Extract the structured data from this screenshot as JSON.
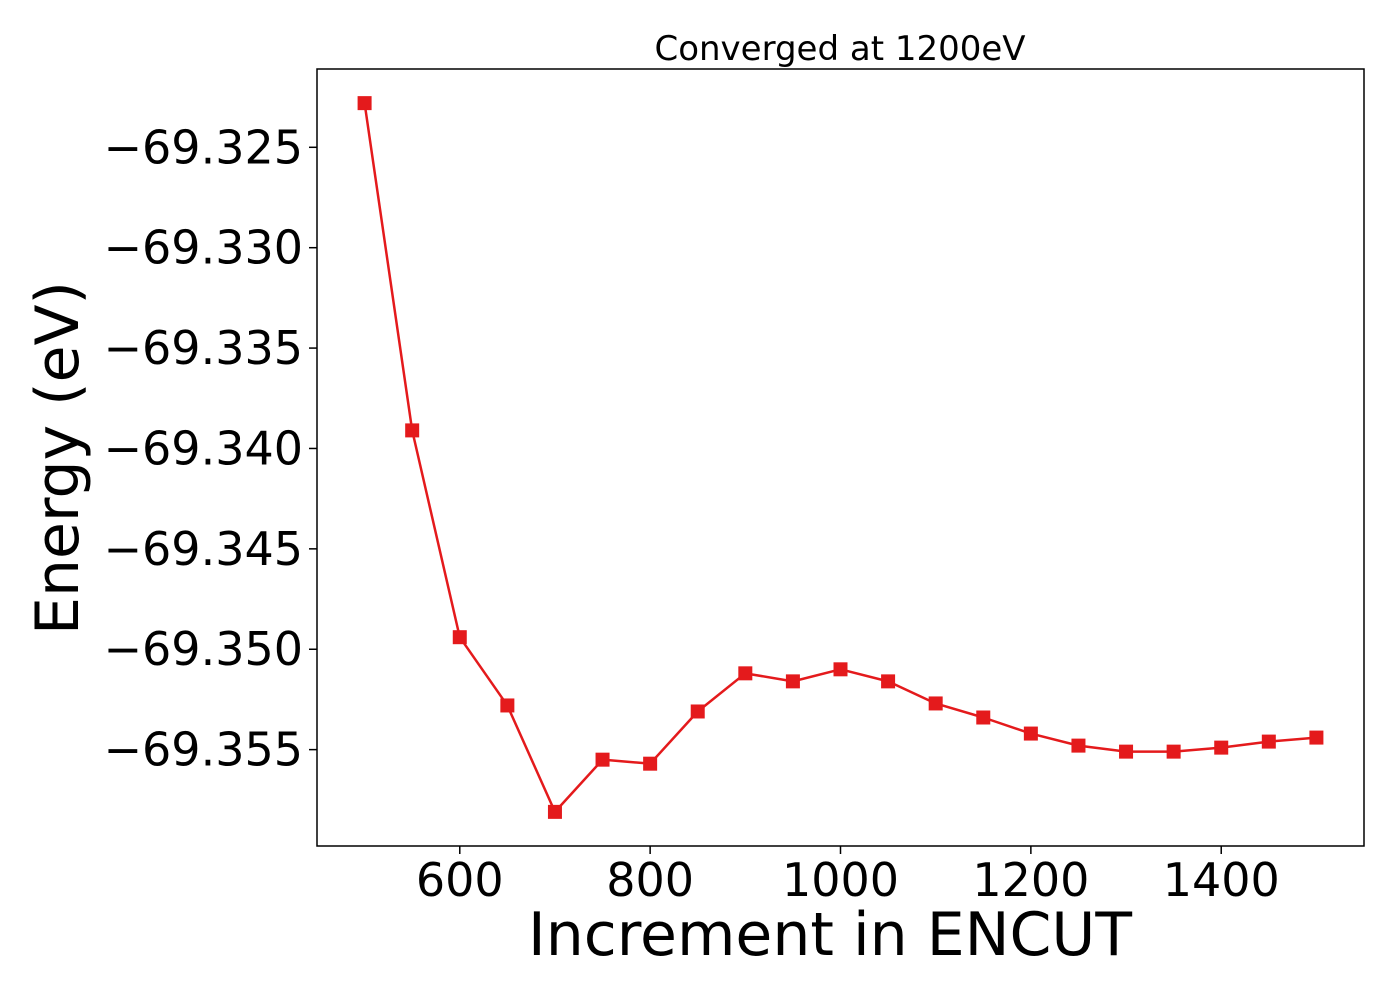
{
  "chart_data": {
    "type": "line",
    "title": "Converged at 1200eV",
    "xlabel": "Increment in ENCUT",
    "ylabel": "Energy (eV)",
    "xlim": [
      450,
      1550
    ],
    "ylim": [
      -69.3598,
      -69.3211
    ],
    "xticks": [
      600,
      800,
      1000,
      1200,
      1400
    ],
    "yticks": [
      -69.325,
      -69.33,
      -69.335,
      -69.34,
      -69.345,
      -69.35,
      -69.355
    ],
    "ytick_labels": [
      "−69.325",
      "−69.330",
      "−69.335",
      "−69.340",
      "−69.345",
      "−69.350",
      "−69.355"
    ],
    "grid": false,
    "series": [
      {
        "color": "#e41a1c",
        "marker": "square",
        "x": [
          500,
          550,
          600,
          650,
          700,
          750,
          800,
          850,
          900,
          950,
          1000,
          1050,
          1100,
          1150,
          1200,
          1250,
          1300,
          1350,
          1400,
          1450,
          1500
        ],
        "y": [
          -69.3228,
          -69.3391,
          -69.3494,
          -69.3528,
          -69.3581,
          -69.3555,
          -69.3557,
          -69.3531,
          -69.3512,
          -69.3516,
          -69.351,
          -69.3516,
          -69.3527,
          -69.3534,
          -69.3542,
          -69.3548,
          -69.3551,
          -69.3551,
          -69.3549,
          -69.3546,
          -69.3544
        ]
      }
    ]
  }
}
